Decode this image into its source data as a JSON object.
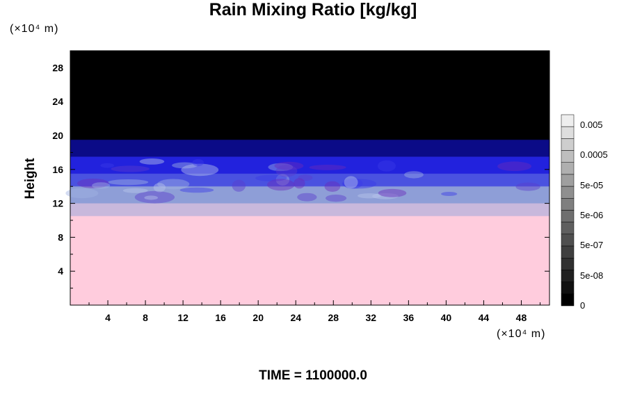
{
  "chart_data": {
    "type": "heatmap",
    "title": "Rain Mixing Ratio [kg/kg]",
    "ylabel": "Height",
    "xlabel": "",
    "y_unit": "(×10⁴ m)",
    "x_unit": "(×10⁴ m)",
    "footer": "TIME = 1100000.0",
    "xlim": [
      0,
      51
    ],
    "ylim": [
      0,
      30
    ],
    "x_ticks": [
      "4",
      "8",
      "12",
      "16",
      "20",
      "24",
      "28",
      "32",
      "36",
      "40",
      "44",
      "48"
    ],
    "x_tick_values": [
      4,
      8,
      12,
      16,
      20,
      24,
      28,
      32,
      36,
      40,
      44,
      48
    ],
    "y_ticks": [
      "4",
      "8",
      "12",
      "16",
      "20",
      "24",
      "28"
    ],
    "y_tick_values": [
      4,
      8,
      12,
      16,
      20,
      24,
      28
    ],
    "colorbar": {
      "labels": [
        "0.005",
        "0.0005",
        "5e-05",
        "5e-06",
        "5e-07",
        "5e-08",
        "0"
      ],
      "levels": 16,
      "top_color": "#eeeeee",
      "bottom_color": "#000000"
    },
    "layers": [
      {
        "from": 0,
        "to": 10.5,
        "color": "#ffccdd"
      },
      {
        "from": 10.5,
        "to": 12,
        "color": "#c8b8dc"
      },
      {
        "from": 12,
        "to": 14,
        "color": "#8e9ed8"
      },
      {
        "from": 14,
        "to": 15.5,
        "color": "#4b52e0"
      },
      {
        "from": 15.5,
        "to": 17.5,
        "color": "#2323dd"
      },
      {
        "from": 17.5,
        "to": 19.5,
        "color": "#0c0c88"
      },
      {
        "from": 19.5,
        "to": 30,
        "color": "#000000"
      }
    ]
  }
}
